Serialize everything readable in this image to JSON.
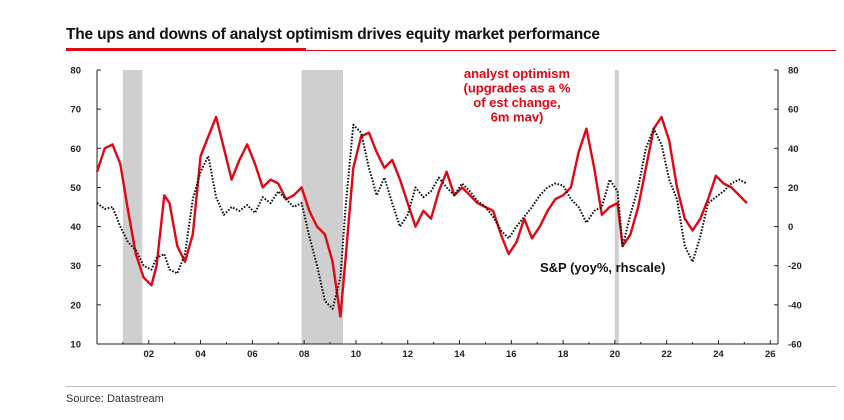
{
  "title": "The ups and downs of analyst optimism drives equity market performance",
  "source": "Source: Datastream",
  "colors": {
    "optimism": "#e30613",
    "sp": "#111111",
    "recession": "#cfcfcf",
    "accent": "#e30613"
  },
  "chart_data": {
    "type": "line",
    "title": "The ups and downs of analyst optimism drives equity market performance",
    "xlim": [
      2000,
      2026.3
    ],
    "x_ticks": [
      2002,
      2004,
      2006,
      2008,
      2010,
      2012,
      2014,
      2016,
      2018,
      2020,
      2022,
      2024,
      2026
    ],
    "x_tick_labels": [
      "02",
      "04",
      "06",
      "08",
      "10",
      "12",
      "14",
      "16",
      "18",
      "20",
      "22",
      "24",
      "26"
    ],
    "y_left": {
      "lim": [
        10,
        80
      ],
      "ticks": [
        10,
        20,
        30,
        40,
        50,
        60,
        70,
        80
      ]
    },
    "y_right": {
      "lim": [
        -60,
        80
      ],
      "ticks": [
        -60,
        -40,
        -20,
        0,
        20,
        40,
        60,
        80
      ]
    },
    "shaded_periods": [
      [
        2001.0,
        2001.75
      ],
      [
        2007.9,
        2009.5
      ],
      [
        2020.0,
        2020.15
      ]
    ],
    "annotation_optimism": [
      "analyst optimism",
      "(upgrades as a %",
      "of est change,",
      "6m mav)"
    ],
    "annotation_sp": "S&P (yoy%, rhscale)",
    "series": [
      {
        "name": "analyst optimism (upgrades as a % of est change, 6m mav)",
        "axis": "left",
        "style": "solid",
        "x": [
          2000.0,
          2000.3,
          2000.6,
          2000.9,
          2001.2,
          2001.5,
          2001.8,
          2002.1,
          2002.3,
          2002.6,
          2002.8,
          2003.1,
          2003.4,
          2003.7,
          2004.0,
          2004.3,
          2004.6,
          2004.9,
          2005.2,
          2005.5,
          2005.8,
          2006.1,
          2006.4,
          2006.7,
          2007.0,
          2007.3,
          2007.6,
          2007.9,
          2008.2,
          2008.5,
          2008.8,
          2009.1,
          2009.4,
          2009.6,
          2009.9,
          2010.2,
          2010.5,
          2010.8,
          2011.1,
          2011.4,
          2011.7,
          2012.0,
          2012.3,
          2012.6,
          2012.9,
          2013.2,
          2013.5,
          2013.8,
          2014.1,
          2014.4,
          2014.7,
          2015.0,
          2015.3,
          2015.6,
          2015.9,
          2016.2,
          2016.5,
          2016.8,
          2017.1,
          2017.4,
          2017.7,
          2018.0,
          2018.3,
          2018.6,
          2018.9,
          2019.2,
          2019.5,
          2019.8,
          2020.1,
          2020.3,
          2020.6,
          2020.9,
          2021.2,
          2021.5,
          2021.8,
          2022.1,
          2022.4,
          2022.7,
          2023.0,
          2023.3,
          2023.6,
          2023.9,
          2024.2,
          2024.5,
          2024.8,
          2025.1
        ],
        "values": [
          54,
          60,
          61,
          56,
          44,
          33,
          27,
          25,
          30,
          48,
          46,
          35,
          31,
          38,
          58,
          63,
          68,
          60,
          52,
          57,
          61,
          56,
          50,
          52,
          51,
          47,
          48,
          50,
          44,
          40,
          38,
          31,
          17,
          32,
          55,
          63,
          64,
          59,
          55,
          57,
          52,
          46,
          40,
          44,
          42,
          49,
          54,
          48,
          50,
          48,
          46,
          45,
          44,
          38,
          33,
          36,
          42,
          37,
          40,
          44,
          47,
          48,
          50,
          59,
          65,
          55,
          43,
          45,
          46,
          35,
          38,
          45,
          55,
          65,
          68,
          62,
          50,
          42,
          39,
          42,
          47,
          53,
          51,
          50,
          48,
          46
        ]
      },
      {
        "name": "S&P (yoy%, rhscale)",
        "axis": "right",
        "style": "dotted",
        "x": [
          2000.0,
          2000.3,
          2000.6,
          2000.9,
          2001.2,
          2001.5,
          2001.8,
          2002.1,
          2002.3,
          2002.6,
          2002.8,
          2003.1,
          2003.4,
          2003.7,
          2004.0,
          2004.3,
          2004.6,
          2004.9,
          2005.2,
          2005.5,
          2005.8,
          2006.1,
          2006.4,
          2006.7,
          2007.0,
          2007.3,
          2007.6,
          2007.9,
          2008.2,
          2008.5,
          2008.8,
          2009.1,
          2009.4,
          2009.6,
          2009.9,
          2010.2,
          2010.5,
          2010.8,
          2011.1,
          2011.4,
          2011.7,
          2012.0,
          2012.3,
          2012.6,
          2012.9,
          2013.2,
          2013.5,
          2013.8,
          2014.1,
          2014.4,
          2014.7,
          2015.0,
          2015.3,
          2015.6,
          2015.9,
          2016.2,
          2016.5,
          2016.8,
          2017.1,
          2017.4,
          2017.7,
          2018.0,
          2018.3,
          2018.6,
          2018.9,
          2019.2,
          2019.5,
          2019.8,
          2020.1,
          2020.3,
          2020.6,
          2020.9,
          2021.2,
          2021.5,
          2021.8,
          2022.1,
          2022.4,
          2022.7,
          2023.0,
          2023.3,
          2023.6,
          2023.9,
          2024.2,
          2024.5,
          2024.8,
          2025.1
        ],
        "values": [
          12,
          9,
          10,
          0,
          -8,
          -12,
          -20,
          -22,
          -16,
          -14,
          -22,
          -24,
          -14,
          14,
          28,
          36,
          15,
          6,
          10,
          8,
          11,
          7,
          15,
          12,
          18,
          14,
          10,
          12,
          -5,
          -20,
          -38,
          -42,
          -26,
          10,
          52,
          48,
          30,
          16,
          25,
          12,
          0,
          6,
          20,
          15,
          18,
          25,
          20,
          16,
          22,
          18,
          13,
          10,
          5,
          -2,
          -6,
          0,
          5,
          10,
          16,
          20,
          22,
          21,
          14,
          10,
          2,
          8,
          10,
          24,
          18,
          -10,
          6,
          20,
          40,
          50,
          42,
          24,
          14,
          -10,
          -18,
          -5,
          12,
          15,
          18,
          22,
          24,
          22
        ]
      }
    ]
  }
}
